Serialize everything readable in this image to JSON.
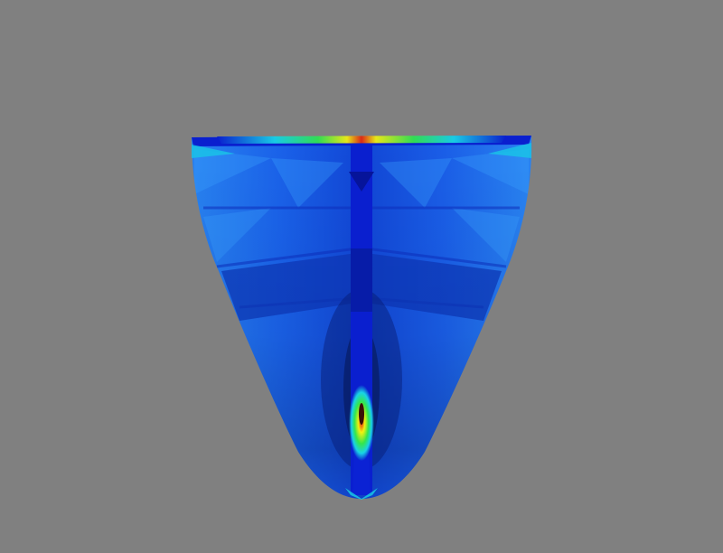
{
  "scene": {
    "background_color": "#808080",
    "object": "mesh-surface",
    "colormap": "jet",
    "colors": {
      "deep_blue": "#0a1fcf",
      "mid_blue": "#1560ef",
      "light_blue": "#2f8ff5",
      "dark_seam": "#061498",
      "cyan": "#19d3e6",
      "green": "#33e64d",
      "yellow": "#f2f20f",
      "red": "#e62a0d"
    }
  }
}
